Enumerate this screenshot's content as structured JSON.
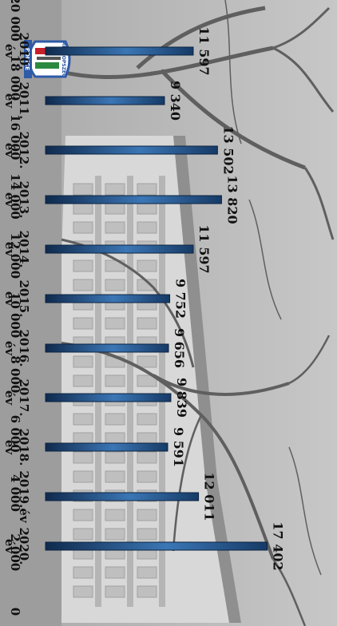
{
  "chart_data": {
    "type": "bar",
    "categories": [
      "2010.",
      "2011.",
      "2012.",
      "2013.",
      "2014.",
      "2015.",
      "2016.",
      "2017.",
      "2018.",
      "2019.év",
      "2020."
    ],
    "category_sublabels": [
      "év",
      "év",
      "év",
      "év",
      "év",
      "év",
      "év",
      "év",
      "év",
      "",
      "év"
    ],
    "values": [
      11597,
      9340,
      13502,
      13820,
      11597,
      9752,
      9656,
      9839,
      9591,
      12011,
      17402
    ],
    "value_labels": [
      "11 597",
      "9 340",
      "13 502",
      "13 820",
      "11 597",
      "9 752",
      "9 656",
      "9 839",
      "9 591",
      "12 011",
      "17 402"
    ],
    "yticks": [
      "0",
      "2 000",
      "4 000",
      "6 000",
      "8 000",
      "10 000",
      "12 000",
      "14 000",
      "16 000",
      "18 000",
      "20 000"
    ],
    "ylim": [
      0,
      20000
    ],
    "grid": false,
    "orientation": "rotated 90° clockwise",
    "bar_color": "#1d4a80",
    "background": "grayscale photo of a building behind bare trees"
  },
  "logo": {
    "text_top": "METROPSZÉG",
    "text_bottom": "POLICE"
  },
  "colors": {
    "bar": "#1d4a80",
    "bar_highlight": "#3b76b5",
    "logo_red": "#c8202b",
    "logo_green": "#2b8a3e",
    "logo_blue": "#2e5aa8"
  }
}
